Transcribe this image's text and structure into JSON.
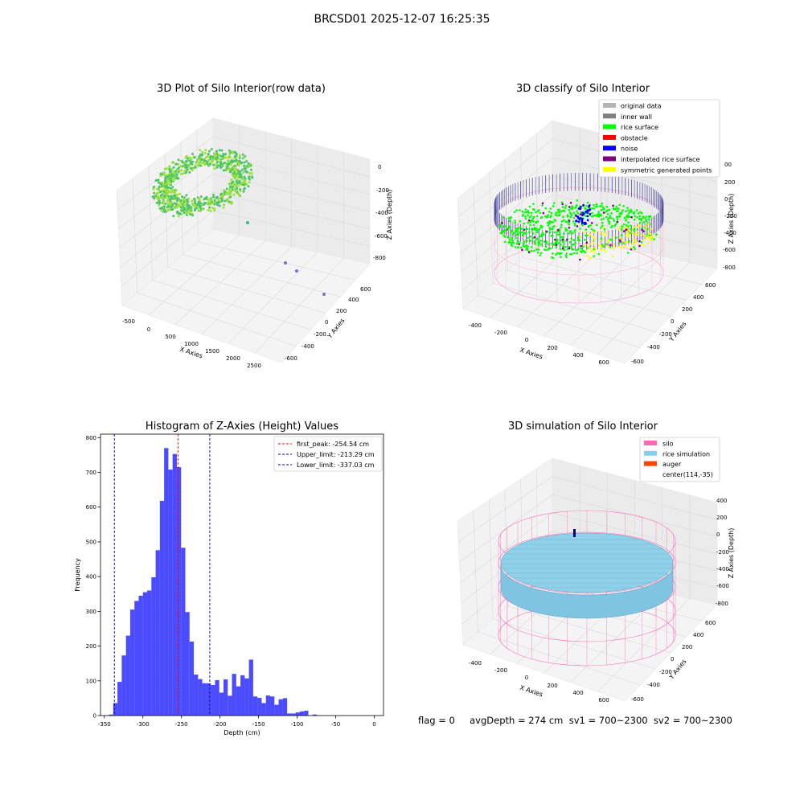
{
  "suptitle": "BRCSD01 2025-12-07 16:25:35",
  "panels": {
    "raw": {
      "title": "3D Plot of Silo Interior(row data)",
      "xlabel": "X Axies",
      "ylabel": "Y Axies",
      "zlabel": "Z Axies (Depth)",
      "xticks": [
        "-500",
        "0",
        "500",
        "1000",
        "1500",
        "2000",
        "2500"
      ],
      "yticks": [
        "600",
        "400",
        "200",
        "0",
        "-200",
        "-400",
        "-600"
      ],
      "zticks": [
        "0",
        "-200",
        "-400",
        "-600",
        "-800"
      ]
    },
    "classify": {
      "title": "3D classify of Silo Interior",
      "xlabel": "X Axies",
      "ylabel": "Y Axies",
      "zlabel": "Z Axies (Depth)",
      "xticks": [
        "-400",
        "-200",
        "0",
        "200",
        "400",
        "600"
      ],
      "yticks": [
        "600",
        "400",
        "200",
        "0",
        "-200",
        "-400",
        "-600"
      ],
      "zticks": [
        "200",
        "0",
        "-200",
        "-400",
        "-600",
        "-800"
      ],
      "ztick_top": "00",
      "legend": [
        {
          "label": "original data",
          "color": "#b3b3b3"
        },
        {
          "label": "inner wall",
          "color": "#808080"
        },
        {
          "label": "rice surface",
          "color": "#00ff00"
        },
        {
          "label": "obstacle",
          "color": "#ff0000"
        },
        {
          "label": "noise",
          "color": "#0000ff"
        },
        {
          "label": "interpolated rice surface",
          "color": "#800080"
        },
        {
          "label": "symmetric generated points",
          "color": "#ffff00"
        }
      ]
    },
    "simulation": {
      "title": "3D simulation of Silo Interior",
      "xlabel": "X Axies",
      "ylabel": "Y Axies",
      "zlabel": "Z Axies (Depth)",
      "xticks": [
        "-400",
        "-200",
        "0",
        "200",
        "400",
        "600"
      ],
      "yticks": [
        "600",
        "400",
        "200",
        "0",
        "-200",
        "-400",
        "-600"
      ],
      "zticks": [
        "400",
        "200",
        "0",
        "-200",
        "-400",
        "-600",
        "-800"
      ],
      "legend": [
        {
          "label": "silo",
          "color": "#ff69b4"
        },
        {
          "label": "rice simulation",
          "color": "#87ceeb"
        },
        {
          "label": "auger",
          "color": "#ff4500"
        },
        {
          "label": "center(114,-35)",
          "color": ""
        }
      ]
    }
  },
  "footer": {
    "text": "flag = 0     avgDepth = 274 cm  sv1 = 700~2300  sv2 = 700~2300"
  },
  "chart_data": {
    "type": "bar",
    "title": "Histogram of Z-Axies (Height) Values",
    "xlabel": "Depth (cm)",
    "ylabel": "Frequency",
    "xlim": [
      -355,
      12
    ],
    "ylim": [
      0,
      810
    ],
    "xticks": [
      -350,
      -300,
      -250,
      -200,
      -150,
      -100,
      -50,
      0
    ],
    "yticks": [
      0,
      100,
      200,
      300,
      400,
      500,
      600,
      700,
      800
    ],
    "bin_width": 5.5,
    "bin_start": -344,
    "values": [
      3,
      36,
      97,
      173,
      230,
      305,
      330,
      345,
      355,
      360,
      398,
      476,
      618,
      770,
      708,
      753,
      715,
      483,
      298,
      213,
      118,
      105,
      93,
      93,
      88,
      102,
      66,
      104,
      57,
      120,
      84,
      116,
      107,
      161,
      55,
      51,
      36,
      58,
      55,
      31,
      47,
      50,
      6,
      6,
      9,
      12,
      14,
      0,
      3
    ],
    "bar_color": "#0000ff",
    "vlines": [
      {
        "label": "first_peak: -254.54 cm",
        "x": -254.54,
        "color": "#ff0000"
      },
      {
        "label": "Upper_limit: -213.29 cm",
        "x": -213.29,
        "color": "#0000aa"
      },
      {
        "label": "Lower_limit: -337.03 cm",
        "x": -337.03,
        "color": "#0000aa"
      }
    ],
    "legend_position": "top-right"
  }
}
